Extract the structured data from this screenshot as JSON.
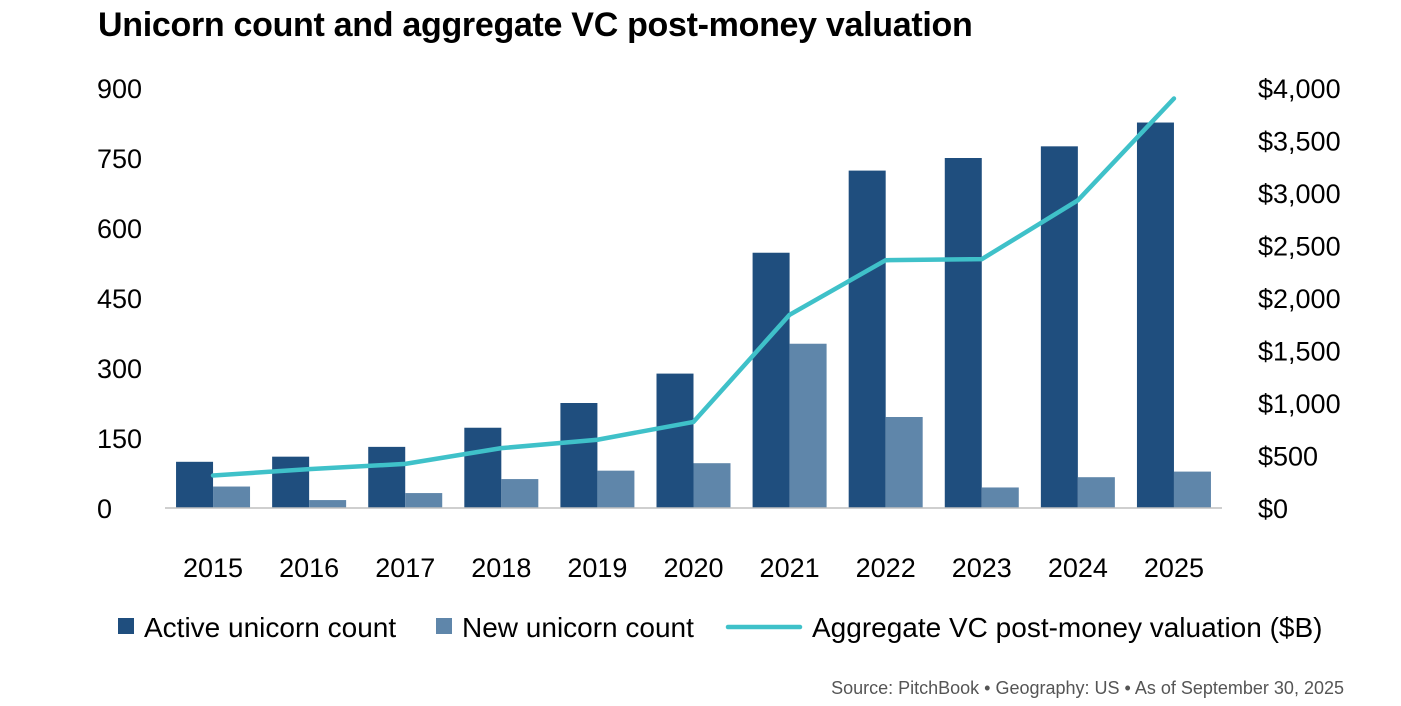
{
  "chart_data": {
    "type": "bar",
    "title": "Unicorn count and aggregate VC post-money valuation",
    "categories": [
      "2015",
      "2016",
      "2017",
      "2018",
      "2019",
      "2020",
      "2021",
      "2022",
      "2023",
      "2024",
      "2025"
    ],
    "series": [
      {
        "name": "Active unicorn count",
        "type": "bar",
        "axis": "left",
        "color": "#1f4e7e",
        "values": [
          99,
          110,
          131,
          172,
          225,
          288,
          547,
          723,
          750,
          775,
          826
        ]
      },
      {
        "name": "New unicorn count",
        "type": "bar",
        "axis": "left",
        "color": "#5f86aa",
        "values": [
          46,
          17,
          32,
          62,
          80,
          96,
          352,
          195,
          44,
          66,
          78
        ]
      },
      {
        "name": "Aggregate VC post-money valuation ($B)",
        "type": "line",
        "axis": "right",
        "color": "#3fc1c9",
        "values": [
          310,
          370,
          420,
          570,
          650,
          820,
          1840,
          2360,
          2370,
          2930,
          3900
        ]
      }
    ],
    "left_axis": {
      "ylim": [
        0,
        900
      ],
      "ticks": [
        "0",
        "150",
        "300",
        "450",
        "600",
        "750",
        "900"
      ]
    },
    "right_axis": {
      "ylim": [
        0,
        4000
      ],
      "ticks": [
        "$0",
        "$500",
        "$1,000",
        "$1,500",
        "$2,000",
        "$2,500",
        "$3,000",
        "$3,500",
        "$4,000"
      ]
    },
    "legend": {
      "placement": "bottom"
    },
    "grid": false
  },
  "source": "Source: PitchBook  •  Geography: US  •  As of September 30, 2025"
}
